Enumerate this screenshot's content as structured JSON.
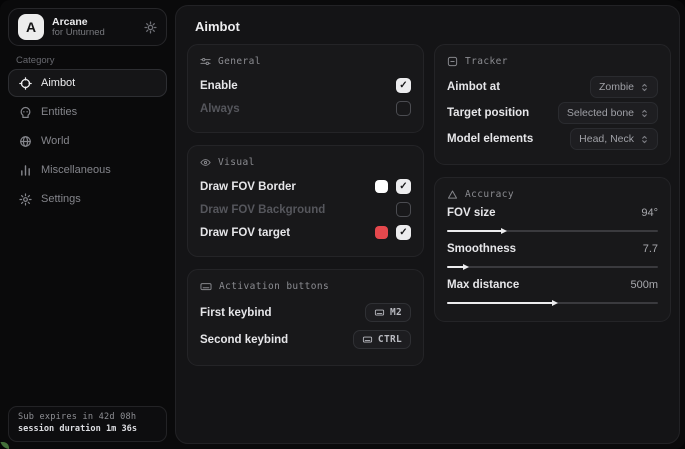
{
  "app": {
    "name": "Arcane",
    "subtitle": "for Unturned",
    "logo_letter": "A"
  },
  "sidebar": {
    "category_label": "Category",
    "items": [
      {
        "label": "Aimbot",
        "active": true
      },
      {
        "label": "Entities",
        "active": false
      },
      {
        "label": "World",
        "active": false
      },
      {
        "label": "Miscellaneous",
        "active": false
      },
      {
        "label": "Settings",
        "active": false
      }
    ],
    "status": {
      "expiry": "Sub expires in 42d 08h",
      "session": "session duration 1m 36s"
    }
  },
  "page": {
    "title": "Aimbot"
  },
  "general": {
    "title": "General",
    "rows": [
      {
        "label": "Enable",
        "checked": true
      },
      {
        "label": "Always",
        "checked": false
      }
    ]
  },
  "visual": {
    "title": "Visual",
    "rows": [
      {
        "label": "Draw FOV Border",
        "swatch": "#ffffff",
        "checked": true
      },
      {
        "label": "Draw FOV Background",
        "checked": false
      },
      {
        "label": "Draw FOV target",
        "swatch": "#e5484d",
        "checked": true
      }
    ]
  },
  "activation": {
    "title": "Activation buttons",
    "rows": [
      {
        "label": "First keybind",
        "key": "M2"
      },
      {
        "label": "Second keybind",
        "key": "CTRL"
      }
    ]
  },
  "tracker": {
    "title": "Tracker",
    "rows": [
      {
        "label": "Aimbot at",
        "value": "Zombie"
      },
      {
        "label": "Target position",
        "value": "Selected bone"
      },
      {
        "label": "Model elements",
        "value": "Head, Neck"
      }
    ]
  },
  "accuracy": {
    "title": "Accuracy",
    "rows": [
      {
        "label": "FOV size",
        "value": "94°",
        "percent": 26
      },
      {
        "label": "Smoothness",
        "value": "7.7",
        "percent": 8
      },
      {
        "label": "Max distance",
        "value": "500m",
        "percent": 50
      }
    ]
  },
  "colors": {
    "accent_red": "#e5484d",
    "checkbox_checked": "#ececee",
    "panel": "#141416",
    "card": "#18181a"
  }
}
